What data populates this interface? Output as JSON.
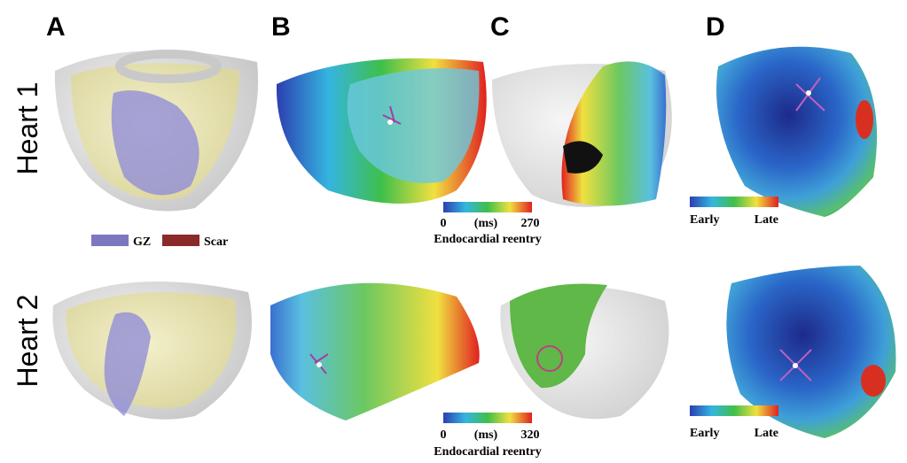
{
  "panels": [
    "A",
    "B",
    "C",
    "D"
  ],
  "rows": [
    "Heart 1",
    "Heart 2"
  ],
  "legend": [
    "GZ",
    "Scar"
  ],
  "colorbars": [
    {
      "min": 0,
      "unit": "(ms)",
      "max": 270,
      "title": "Endocardial reentry"
    },
    {
      "min": 0,
      "unit": "(ms)",
      "max": 320,
      "title": "Endocardial reentry"
    },
    {
      "start": "Early",
      "end": "Late"
    },
    {
      "start": "Early",
      "end": "Late"
    }
  ]
}
